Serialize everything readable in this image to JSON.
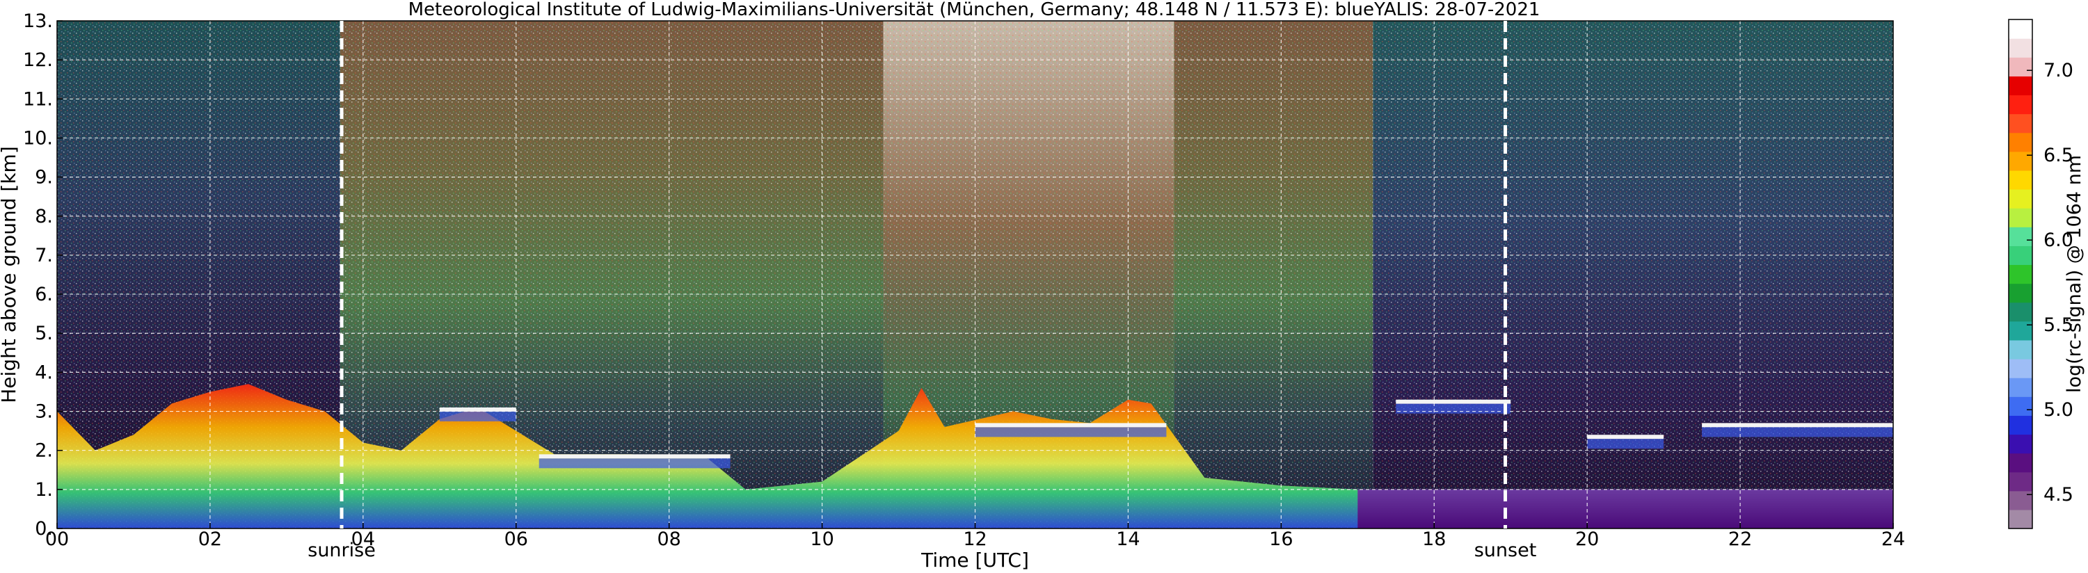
{
  "chart_data": {
    "type": "heatmap",
    "title": "Meteorological Institute of Ludwig-Maximilians-Universität (München, Germany; 48.148 N / 11.573 E):     blueYALIS: 28-07-2021",
    "xlabel": "Time [UTC]",
    "ylabel": "Height above ground [km]",
    "xlim": [
      0,
      24
    ],
    "ylim": [
      0,
      13
    ],
    "x_ticks": [
      0,
      2,
      4,
      6,
      8,
      10,
      12,
      14,
      16,
      18,
      20,
      22,
      24
    ],
    "x_tick_labels": [
      "00",
      "02",
      "04",
      "06",
      "08",
      "10",
      "12",
      "14",
      "16",
      "18",
      "20",
      "22",
      "24"
    ],
    "y_ticks": [
      0,
      1,
      2,
      3,
      4,
      5,
      6,
      7,
      8,
      9,
      10,
      11,
      12,
      13
    ],
    "y_tick_labels": [
      "0.",
      "1.",
      "2.",
      "3.",
      "4.",
      "5.",
      "6.",
      "7.",
      "8.",
      "9.",
      "10.",
      "11.",
      "12.",
      "13."
    ],
    "grid": true,
    "events": [
      {
        "label": "sunrise",
        "time": 3.72
      },
      {
        "label": "sunset",
        "time": 18.93
      }
    ],
    "colorbar": {
      "label": "log(rc-signal) @ 1064 nm",
      "range": [
        4.3,
        7.3
      ],
      "ticks": [
        4.5,
        5.0,
        5.5,
        6.0,
        6.5,
        7.0
      ],
      "tick_labels": [
        "4.5",
        "5.0",
        "5.5",
        "6.0",
        "6.5",
        "7.0"
      ],
      "colors": [
        "#a38aa6",
        "#8a5c92",
        "#6e2a86",
        "#5a0f80",
        "#3a0fb0",
        "#2030e0",
        "#3e6cf2",
        "#6a98f5",
        "#9ebdf6",
        "#79c9e0",
        "#1fa79a",
        "#1a8f6b",
        "#18a030",
        "#2ec42a",
        "#38d07a",
        "#56e09a",
        "#b8f040",
        "#e6f020",
        "#ffd800",
        "#ffa800",
        "#ff8000",
        "#ff5020",
        "#ff2010",
        "#e60000",
        "#f0b8bc",
        "#f2e0e2",
        "#ffffff"
      ]
    },
    "boundary_layer_top_km": [
      [
        0,
        3.0
      ],
      [
        0.5,
        2.0
      ],
      [
        1.0,
        2.4
      ],
      [
        1.5,
        3.2
      ],
      [
        2.0,
        3.5
      ],
      [
        2.5,
        3.7
      ],
      [
        3.0,
        3.3
      ],
      [
        3.5,
        3.0
      ],
      [
        4.0,
        2.2
      ],
      [
        4.5,
        2.0
      ],
      [
        5.0,
        2.8
      ],
      [
        5.5,
        3.1
      ],
      [
        6.0,
        2.5
      ],
      [
        6.5,
        1.9
      ],
      [
        7.5,
        1.9
      ],
      [
        8.5,
        1.8
      ],
      [
        9.0,
        1.0
      ],
      [
        10.0,
        1.2
      ],
      [
        11.0,
        2.5
      ],
      [
        11.3,
        3.6
      ],
      [
        11.6,
        2.6
      ],
      [
        12.5,
        3.0
      ],
      [
        13.0,
        2.8
      ],
      [
        13.5,
        2.7
      ],
      [
        14.0,
        3.3
      ],
      [
        14.3,
        3.2
      ],
      [
        15.0,
        1.3
      ],
      [
        16.0,
        1.1
      ],
      [
        17.0,
        1.0
      ],
      [
        18.0,
        0.9
      ],
      [
        19.0,
        0.8
      ],
      [
        20.0,
        0.9
      ],
      [
        21.0,
        1.0
      ],
      [
        22.0,
        1.0
      ],
      [
        24.0,
        0.9
      ]
    ],
    "elevated_layers": [
      {
        "x": [
          5.0,
          6.0
        ],
        "top_km": 3.1
      },
      {
        "x": [
          6.3,
          8.8
        ],
        "top_km": 1.9
      },
      {
        "x": [
          12.0,
          14.5
        ],
        "top_km": 2.7
      },
      {
        "x": [
          17.5,
          19.0
        ],
        "top_km": 3.3
      },
      {
        "x": [
          20.0,
          21.0
        ],
        "top_km": 2.4
      },
      {
        "x": [
          21.5,
          24.0
        ],
        "top_km": 2.7
      }
    ]
  }
}
